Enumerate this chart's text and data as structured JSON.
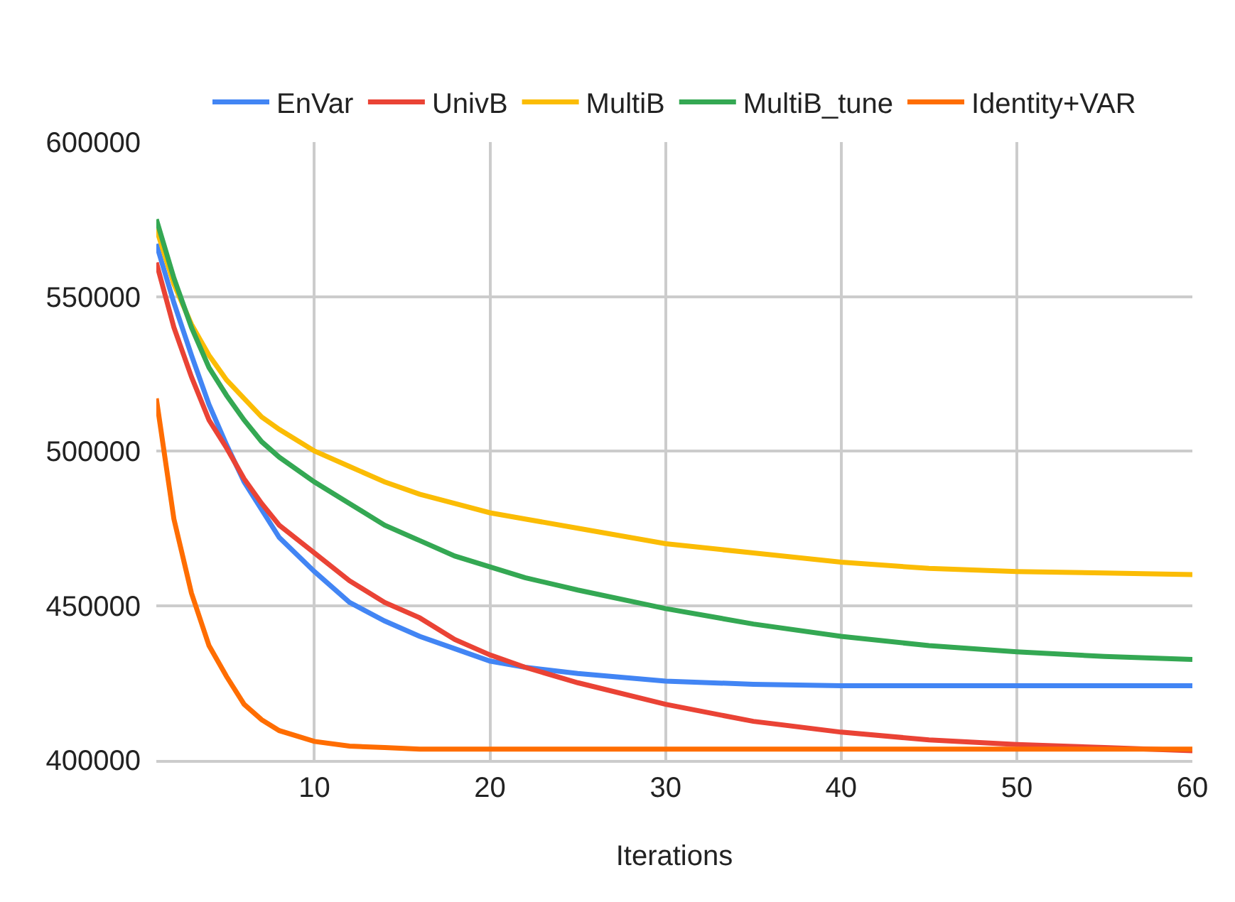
{
  "chart_data": {
    "type": "line",
    "xlabel": "Iterations",
    "x": [
      1,
      2,
      3,
      4,
      5,
      6,
      7,
      8,
      10,
      12,
      14,
      16,
      18,
      20,
      22,
      25,
      30,
      35,
      40,
      45,
      50,
      55,
      60
    ],
    "xlim": [
      1,
      60
    ],
    "xticks": [
      10,
      20,
      30,
      40,
      50,
      60
    ],
    "ylim": [
      400000,
      600000
    ],
    "yticks": [
      400000,
      450000,
      500000,
      550000,
      600000
    ],
    "grid": true,
    "legend": "top",
    "marker": "none",
    "line_style": "solid",
    "series": [
      {
        "name": "EnVar",
        "color": "#4285f4",
        "values": [
          567000,
          548000,
          531000,
          515000,
          502000,
          490000,
          481000,
          472000,
          461000,
          451000,
          445000,
          440000,
          436000,
          432000,
          430000,
          428000,
          425500,
          424500,
          424000,
          424000,
          424000,
          424000,
          424000
        ]
      },
      {
        "name": "UnivB",
        "color": "#ea4335",
        "values": [
          561000,
          540000,
          524000,
          510000,
          501000,
          491000,
          483000,
          476000,
          467000,
          458000,
          451000,
          446000,
          439000,
          434000,
          430000,
          425000,
          418000,
          412500,
          409000,
          406500,
          405000,
          404000,
          403000
        ]
      },
      {
        "name": "MultiB",
        "color": "#fbbc04",
        "values": [
          572000,
          554000,
          541000,
          531000,
          523000,
          517000,
          511000,
          507000,
          500000,
          495000,
          490000,
          486000,
          483000,
          480000,
          478000,
          475000,
          470000,
          467000,
          464000,
          462000,
          461000,
          460500,
          460000
        ]
      },
      {
        "name": "MultiB_tune",
        "color": "#34a853",
        "values": [
          575000,
          556000,
          540000,
          527000,
          518000,
          510000,
          503000,
          498000,
          490000,
          483000,
          476000,
          471000,
          466000,
          462500,
          459000,
          455000,
          449000,
          444000,
          440000,
          437000,
          435000,
          433500,
          432500
        ]
      },
      {
        "name": "Identity+VAR",
        "color": "#ff6d01",
        "values": [
          517000,
          478000,
          454000,
          437000,
          427000,
          418000,
          413000,
          409500,
          406000,
          404500,
          404000,
          403500,
          403500,
          403500,
          403500,
          403500,
          403500,
          403500,
          403500,
          403500,
          403500,
          403500,
          403500
        ]
      }
    ]
  }
}
